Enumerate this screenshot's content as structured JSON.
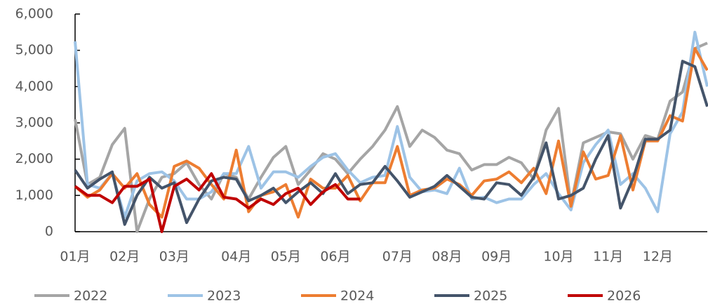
{
  "chart_data": {
    "type": "line",
    "categories": [
      "01月",
      null,
      null,
      null,
      "02月",
      null,
      null,
      null,
      "03月",
      null,
      null,
      null,
      null,
      "04月",
      null,
      null,
      null,
      "05月",
      null,
      null,
      null,
      "06月",
      null,
      null,
      null,
      null,
      "07月",
      null,
      null,
      null,
      "08月",
      null,
      null,
      null,
      "09月",
      null,
      null,
      null,
      null,
      "10月",
      null,
      null,
      null,
      "11月",
      null,
      null,
      null,
      "12月",
      null,
      null,
      null,
      null
    ],
    "series": [
      {
        "name": "2022",
        "color": "#a5a5a5",
        "values": [
          3100,
          1300,
          1500,
          2400,
          2850,
          0,
          900,
          1500,
          1600,
          1900,
          1300,
          900,
          1600,
          1500,
          900,
          1500,
          2050,
          2350,
          1300,
          1700,
          2150,
          2000,
          1600,
          2000,
          2350,
          2800,
          3450,
          2350,
          2800,
          2600,
          2250,
          2150,
          1700,
          1850,
          1850,
          2050,
          1900,
          1450,
          2800,
          3400,
          750,
          2450,
          2600,
          2750,
          2700,
          2000,
          2650,
          2550,
          3600,
          3850,
          5050,
          5200
        ]
      },
      {
        "name": "2023",
        "color": "#9dc3e6",
        "values": [
          5250,
          1300,
          1200,
          1600,
          400,
          1400,
          1600,
          1650,
          1400,
          900,
          900,
          1100,
          1600,
          1600,
          2350,
          1200,
          1650,
          1650,
          1500,
          1800,
          2050,
          2150,
          1700,
          1350,
          1500,
          1550,
          2900,
          1500,
          1100,
          1150,
          1050,
          1750,
          900,
          950,
          800,
          900,
          900,
          1300,
          1600,
          1050,
          600,
          1900,
          2400,
          2800,
          1300,
          1600,
          1200,
          550,
          2700,
          3300,
          5500,
          4000
        ]
      },
      {
        "name": "2024",
        "color": "#ed7d31",
        "values": [
          1250,
          950,
          1150,
          1600,
          1200,
          1600,
          750,
          400,
          1800,
          1950,
          1750,
          1300,
          900,
          2250,
          550,
          1000,
          1100,
          1300,
          400,
          1450,
          1200,
          1200,
          1550,
          850,
          1350,
          1350,
          2350,
          1000,
          1150,
          1200,
          1450,
          1300,
          1000,
          1400,
          1450,
          1650,
          1350,
          1750,
          1050,
          2500,
          700,
          2200,
          1450,
          1550,
          2650,
          1150,
          2500,
          2500,
          3200,
          3050,
          5050,
          4450
        ]
      },
      {
        "name": "2025",
        "color": "#44546a",
        "values": [
          1700,
          1200,
          1450,
          1650,
          200,
          1000,
          1500,
          1200,
          1350,
          250,
          900,
          1400,
          1500,
          1450,
          850,
          1000,
          1200,
          800,
          1100,
          1350,
          1050,
          1600,
          1050,
          1300,
          1350,
          1800,
          1400,
          950,
          1100,
          1250,
          1550,
          1250,
          950,
          900,
          1350,
          1300,
          1000,
          1500,
          2450,
          900,
          1000,
          1200,
          2000,
          2650,
          650,
          1450,
          2550,
          2550,
          2800,
          4700,
          4550,
          3450
        ]
      },
      {
        "name": "2026",
        "color": "#c00000",
        "values": [
          1250,
          1000,
          1000,
          800,
          1250,
          1250,
          1450,
          0,
          1250,
          1450,
          1150,
          1600,
          950,
          900,
          650,
          900,
          750,
          1050,
          1200,
          750,
          1100,
          1300,
          900,
          900,
          null,
          null,
          null,
          null,
          null,
          null,
          null,
          null,
          null,
          null,
          null,
          null,
          null,
          null,
          null,
          null,
          null,
          null,
          null,
          null,
          null,
          null,
          null,
          null,
          null,
          null,
          null,
          null
        ]
      }
    ],
    "ylim": [
      0,
      6000
    ],
    "yticks": [
      0,
      {
        "value": 1000,
        "label": "1,000"
      },
      {
        "value": 2000,
        "label": "2,000"
      },
      {
        "value": 3000,
        "label": "3,000"
      },
      {
        "value": 4000,
        "label": "4,000"
      },
      {
        "value": 5000,
        "label": "5,000"
      },
      {
        "value": 6000,
        "label": "6,000"
      }
    ],
    "grid": false,
    "legend": "bottom"
  }
}
